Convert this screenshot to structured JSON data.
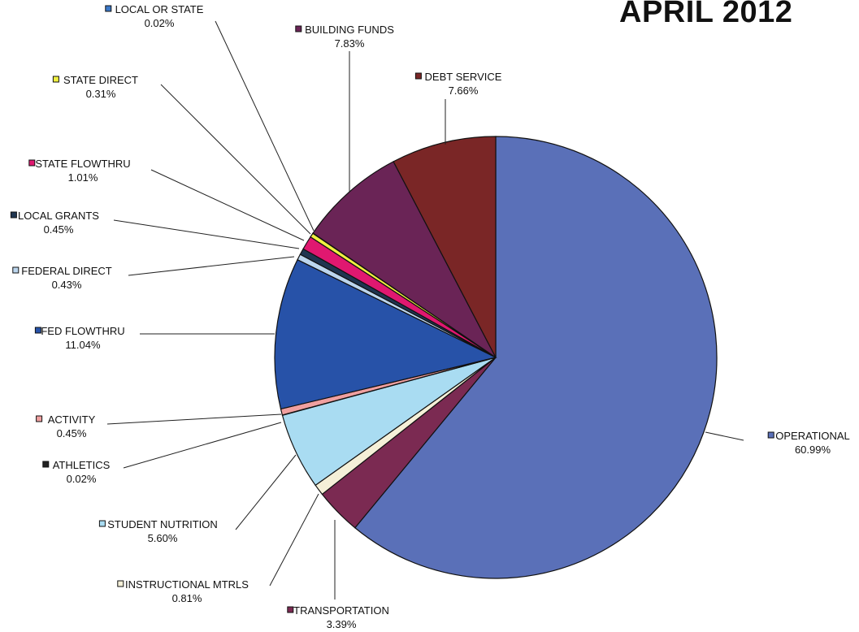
{
  "title": "APRIL 2012",
  "chart_data": {
    "type": "pie",
    "title": "APRIL 2012",
    "slices": [
      {
        "name": "OPERATIONAL",
        "value": 60.99,
        "label": "60.99%",
        "color": "#5a70b8"
      },
      {
        "name": "TRANSPORTATION",
        "value": 3.39,
        "label": "3.39%",
        "color": "#7b2a52"
      },
      {
        "name": "INSTRUCTIONAL MTRLS",
        "value": 0.81,
        "label": "0.81%",
        "color": "#f5f0d8"
      },
      {
        "name": "STUDENT NUTRITION",
        "value": 5.6,
        "label": "5.60%",
        "color": "#a9dcf2"
      },
      {
        "name": "ATHLETICS",
        "value": 0.02,
        "label": "0.02%",
        "color": "#222222"
      },
      {
        "name": "ACTIVITY",
        "value": 0.45,
        "label": "0.45%",
        "color": "#f0a0a0"
      },
      {
        "name": "FED FLOWTHRU",
        "value": 11.04,
        "label": "11.04%",
        "color": "#2752a8"
      },
      {
        "name": "FEDERAL DIRECT",
        "value": 0.43,
        "label": "0.43%",
        "color": "#bcd6ee"
      },
      {
        "name": "LOCAL GRANTS",
        "value": 0.45,
        "label": "0.45%",
        "color": "#1f3550"
      },
      {
        "name": "STATE FLOWTHRU",
        "value": 1.01,
        "label": "1.01%",
        "color": "#e01870"
      },
      {
        "name": "STATE DIRECT",
        "value": 0.31,
        "label": "0.31%",
        "color": "#f0f040"
      },
      {
        "name": "LOCAL OR STATE",
        "value": 0.02,
        "label": "0.02%",
        "color": "#3a78c8"
      },
      {
        "name": "BUILDING FUNDS",
        "value": 7.83,
        "label": "7.83%",
        "color": "#6a2456"
      },
      {
        "name": "DEBT SERVICE",
        "value": 7.66,
        "label": "7.66%",
        "color": "#7a2626"
      }
    ]
  }
}
